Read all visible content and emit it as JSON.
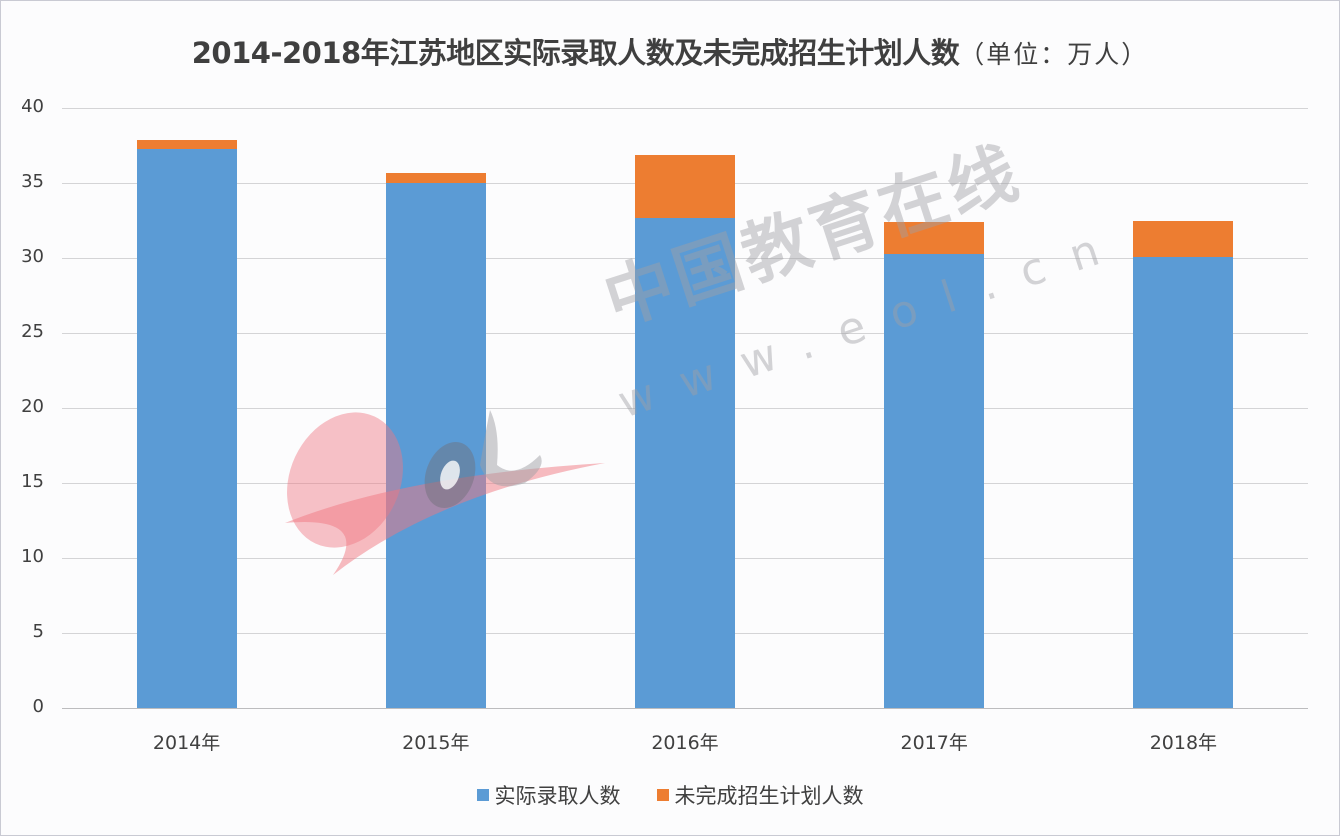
{
  "title": {
    "main": "2014-2018年江苏地区实际录取人数及未完成招生计划人数",
    "unit": "（单位：万人）"
  },
  "colors": {
    "actual": "#5b9bd5",
    "unfinished": "#ed7d31"
  },
  "y_axis": {
    "ticks": [
      "40",
      "35",
      "30",
      "25",
      "20",
      "15",
      "10",
      "5",
      "0"
    ]
  },
  "x_axis": {
    "ticks": [
      "2014年",
      "2015年",
      "2016年",
      "2017年",
      "2018年"
    ]
  },
  "legend": {
    "items": [
      {
        "label": "实际录取人数",
        "color": "#5b9bd5"
      },
      {
        "label": "未完成招生计划人数",
        "color": "#ed7d31"
      }
    ]
  },
  "watermark": {
    "text": "中国教育在线",
    "url": "www.eol.cn"
  },
  "chart_data": {
    "type": "bar",
    "stacked": true,
    "title": "2014-2018年江苏地区实际录取人数及未完成招生计划人数（单位：万人）",
    "xlabel": "",
    "ylabel": "",
    "categories": [
      "2014年",
      "2015年",
      "2016年",
      "2017年",
      "2018年"
    ],
    "series": [
      {
        "name": "实际录取人数",
        "color": "#5b9bd5",
        "values": [
          37.3,
          35.0,
          32.7,
          30.3,
          30.1
        ]
      },
      {
        "name": "未完成招生计划人数",
        "color": "#ed7d31",
        "values": [
          0.6,
          0.7,
          4.2,
          2.1,
          2.4
        ]
      }
    ],
    "ylim": [
      0,
      40
    ],
    "yticks": [
      0,
      5,
      10,
      15,
      20,
      25,
      30,
      35,
      40
    ],
    "grid": true,
    "legend_position": "bottom"
  }
}
